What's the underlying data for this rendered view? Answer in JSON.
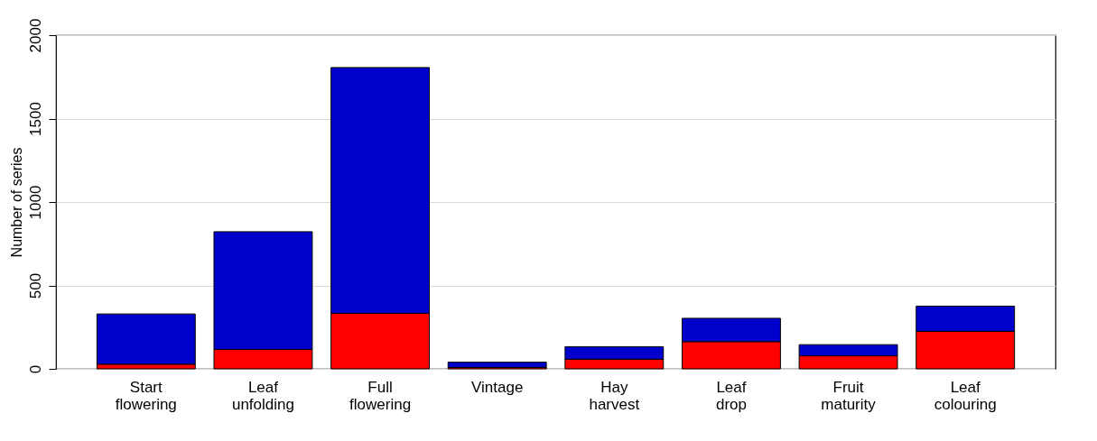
{
  "chart_data": {
    "type": "bar",
    "ylabel": "Number of series",
    "categories": [
      "Start flowering",
      "Leaf unfolding",
      "Full flowering",
      "Vintage",
      "Hay harvest",
      "Leaf drop",
      "Fruit maturity",
      "Leaf colouring"
    ],
    "stacked": true,
    "series": [
      {
        "color": "#ff0000",
        "values": [
          28,
          116,
          333,
          9,
          58,
          163,
          78,
          225
        ]
      },
      {
        "color": "#0000cc",
        "values": [
          301,
          706,
          1473,
          31,
          75,
          140,
          67,
          151
        ]
      }
    ],
    "ylim": [
      0,
      2000
    ],
    "yticks": [
      0,
      500,
      1000,
      1500,
      2000
    ],
    "grid": "y",
    "legend": false
  }
}
